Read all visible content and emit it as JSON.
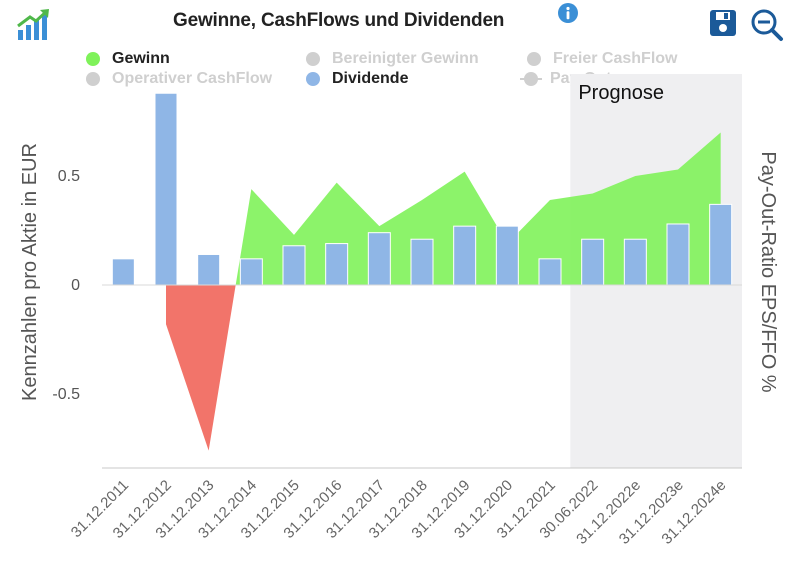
{
  "header": {
    "title": "Gewinne, CashFlows und Dividenden",
    "icons": {
      "logo": "trending-chart-logo",
      "info": "info-icon",
      "save": "save-icon",
      "zoom": "zoom-out-icon"
    }
  },
  "legend": {
    "items": [
      {
        "label": "Gewinn",
        "color": "#7ff25a",
        "active": true
      },
      {
        "label": "Bereinigter Gewinn",
        "color": "#cfcfcf",
        "active": false
      },
      {
        "label": "Freier CashFlow",
        "color": "#cfcfcf",
        "active": false
      },
      {
        "label": "Operativer CashFlow",
        "color": "#cfcfcf",
        "active": false
      },
      {
        "label": "Dividende",
        "color": "#8fb6e6",
        "active": true
      },
      {
        "label": "Pay-Out",
        "color": "#cfcfcf",
        "active": false
      }
    ]
  },
  "chart_data": {
    "type": "bar",
    "title": "Gewinne, CashFlows und Dividenden",
    "ylabel": "Kennzahlen pro Aktie in EUR",
    "y2label": "Pay-Out-Ratio EPS/FFO %",
    "ylim": [
      -0.84,
      0.95
    ],
    "yticks": [
      -0.5,
      0,
      0.5
    ],
    "ytick_labels": [
      "-0.5",
      "0",
      "0.5"
    ],
    "categories": [
      "31.12.2011",
      "31.12.2012",
      "31.12.2013",
      "31.12.2014",
      "31.12.2015",
      "31.12.2016",
      "31.12.2017",
      "31.12.2018",
      "31.12.2019",
      "31.12.2020",
      "31.12.2021",
      "30.06.2022",
      "31.12.2022e",
      "31.12.2023e",
      "31.12.2024e"
    ],
    "forecast_label": "Prognose",
    "forecast_start_index": 11,
    "series": [
      {
        "name": "Gewinn",
        "type": "area",
        "color_positive": "#7ff25a",
        "color_negative": "#f1655a",
        "values": [
          null,
          -0.18,
          -0.76,
          0.44,
          0.23,
          0.47,
          0.27,
          0.39,
          0.52,
          0.19,
          0.39,
          0.42,
          0.5,
          0.53,
          0.7
        ]
      },
      {
        "name": "Dividende",
        "type": "bar",
        "color": "#8fb6e6",
        "values": [
          0.12,
          0.88,
          0.14,
          0.12,
          0.18,
          0.19,
          0.24,
          0.21,
          0.27,
          0.27,
          0.12,
          0.21,
          0.21,
          0.28,
          0.37
        ]
      }
    ],
    "grid": false
  }
}
